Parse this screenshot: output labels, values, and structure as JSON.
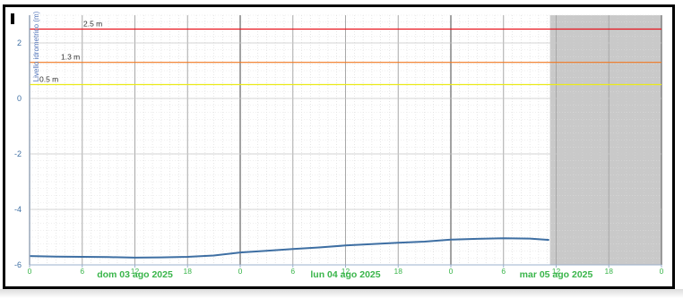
{
  "chart_data": {
    "type": "line",
    "ylabel": "Livello idrometrico (m)",
    "ylim": [
      -6,
      3
    ],
    "yticks": [
      2,
      0,
      -2,
      -4,
      -6
    ],
    "xlim_hours": [
      0,
      72
    ],
    "x_start": "2025-08-03 00:00",
    "x_tick_labels": [
      "0",
      "6",
      "12",
      "18",
      "0",
      "6",
      "12",
      "18",
      "0",
      "6",
      "12",
      "18",
      "0"
    ],
    "day_labels": [
      "dom 03 ago 2025",
      "lun 04 ago 2025",
      "mar 05 ago 2025"
    ],
    "forecast_shading_start_hour": 59.3,
    "grid": true,
    "thresholds": [
      {
        "label": "2.5 m",
        "value": 2.5,
        "color": "#e8141e"
      },
      {
        "label": "1.3 m",
        "value": 1.3,
        "color": "#f07820"
      },
      {
        "label": "0.5 m",
        "value": 0.5,
        "color": "#eaea1a"
      }
    ],
    "series": [
      {
        "color": "#3e6fa3",
        "x_hours": [
          0,
          3,
          6,
          9,
          12,
          15,
          18,
          21,
          24,
          27,
          30,
          33,
          36,
          39,
          42,
          45,
          48,
          51,
          54,
          57,
          59.2
        ],
        "values": [
          -5.68,
          -5.7,
          -5.71,
          -5.72,
          -5.74,
          -5.73,
          -5.71,
          -5.66,
          -5.55,
          -5.49,
          -5.43,
          -5.37,
          -5.3,
          -5.25,
          -5.2,
          -5.16,
          -5.09,
          -5.06,
          -5.04,
          -5.05,
          -5.1
        ]
      }
    ]
  }
}
